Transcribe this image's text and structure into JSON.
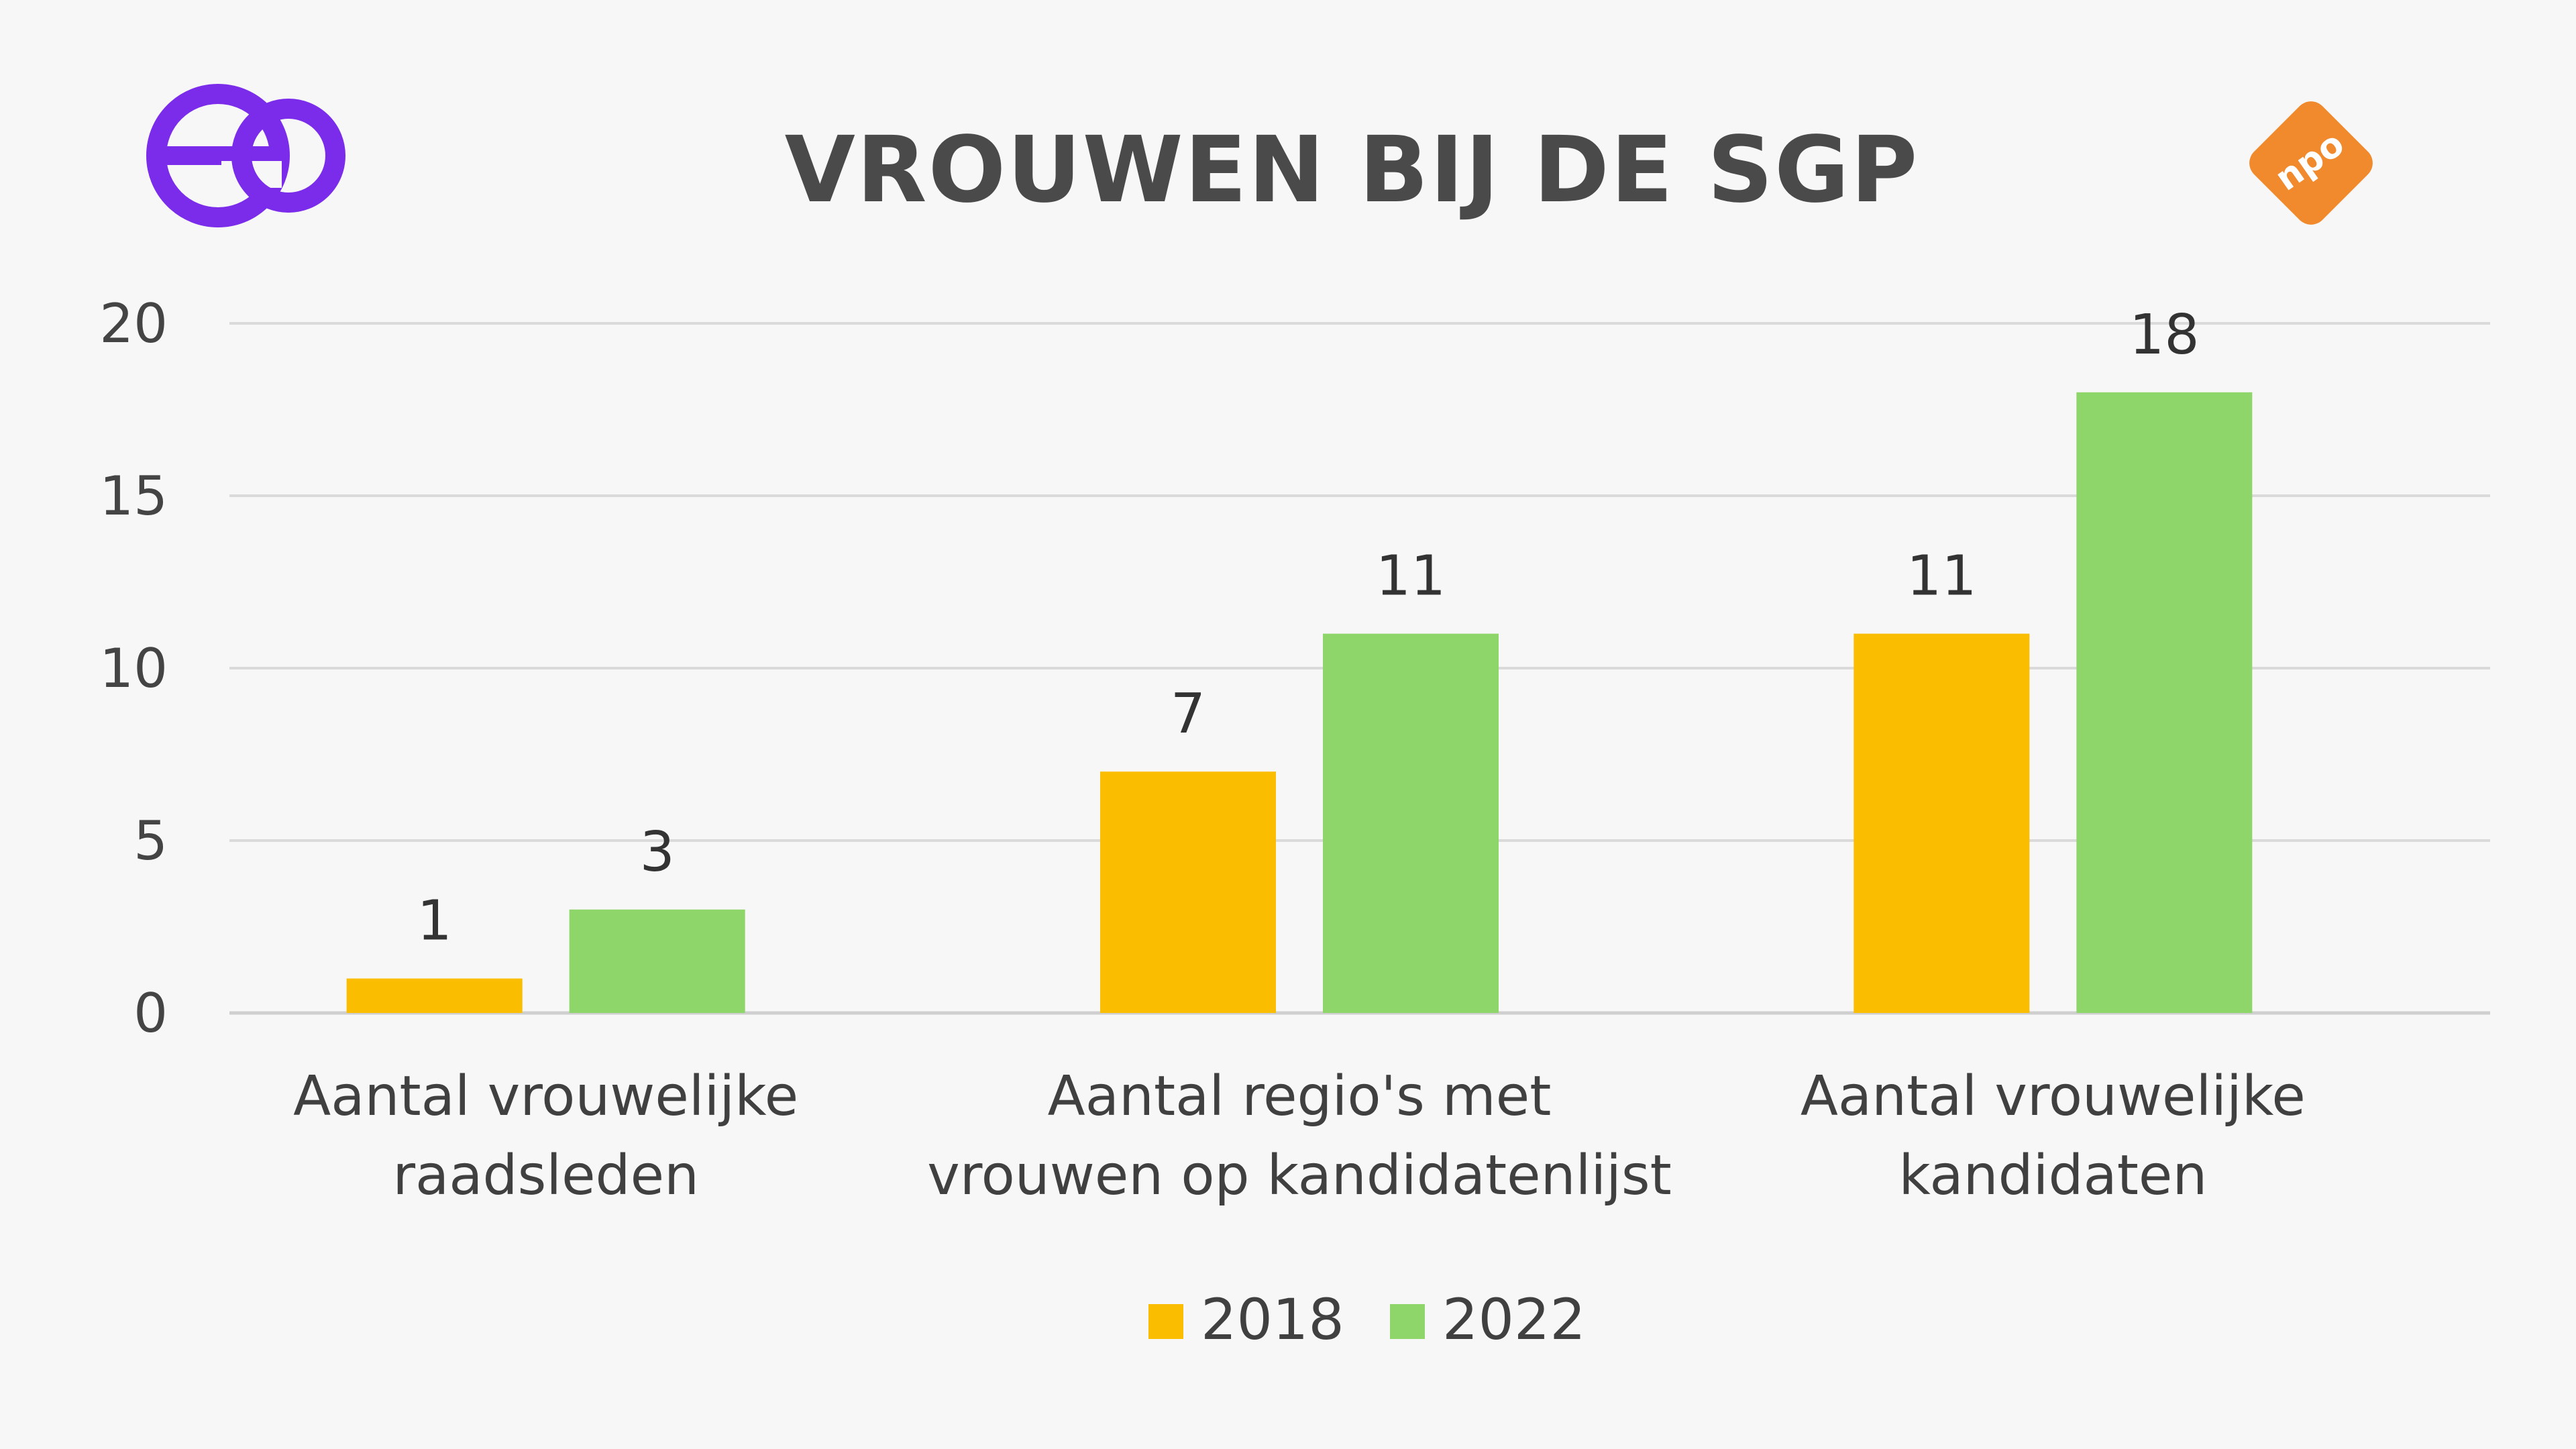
{
  "logos": {
    "left_brand": "eo",
    "right_brand": "npo",
    "left_color": "#7b2bea",
    "right_color": "#f08a2c"
  },
  "chart_data": {
    "type": "bar",
    "title": "VROUWEN BIJ DE SGP",
    "categories": [
      [
        "Aantal vrouwelijke",
        "raadsleden"
      ],
      [
        "Aantal regio's met",
        "vrouwen op kandidatenlijst"
      ],
      [
        "Aantal vrouwelijke",
        "kandidaten"
      ]
    ],
    "series": [
      {
        "name": "2018",
        "color": "#fbbd00",
        "values": [
          1,
          7,
          11
        ]
      },
      {
        "name": "2022",
        "color": "#8fd66a",
        "values": [
          3,
          11,
          18
        ]
      }
    ],
    "ylim": [
      0,
      20
    ],
    "yticks": [
      0,
      5,
      10,
      15,
      20
    ],
    "grid": true,
    "legend_position": "bottom",
    "data_labels": true
  }
}
